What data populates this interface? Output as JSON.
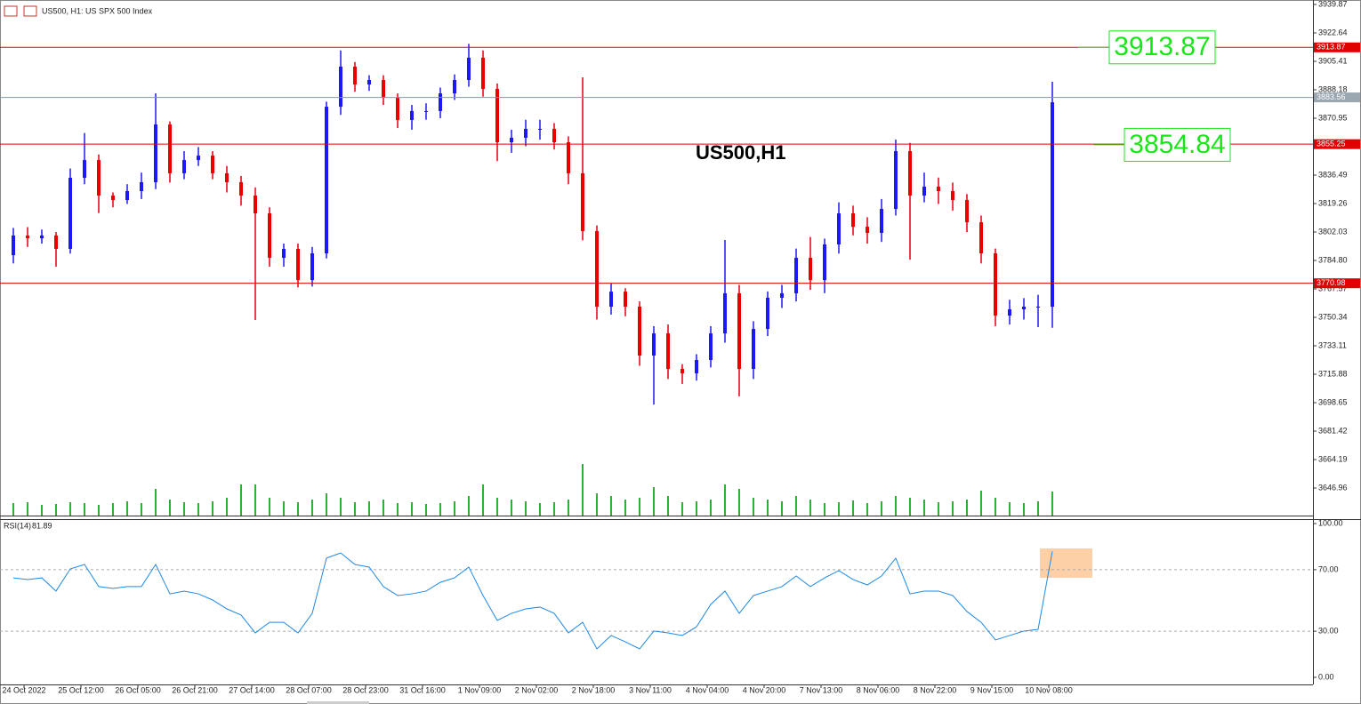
{
  "chart_data": [
    {
      "type": "candlestick",
      "title": "US500, H1:  US SPX 500 Index",
      "watermark": "US500,H1",
      "categories": [
        "24 Oct 2022",
        "25 Oct 12:00",
        "26 Oct 05:00",
        "26 Oct 21:00",
        "27 Oct 14:00",
        "28 Oct 07:00",
        "28 Oct 23:00",
        "31 Oct 16:00",
        "1 Nov 09:00",
        "2 Nov 02:00",
        "2 Nov 18:00",
        "3 Nov 11:00",
        "4 Nov 04:00",
        "4 Nov 20:00",
        "7 Nov 13:00",
        "8 Nov 06:00",
        "8 Nov 22:00",
        "9 Nov 15:00",
        "10 Nov 08:00"
      ],
      "open": [
        3788.0,
        3799.9,
        3798.2,
        3799.9,
        3791.8,
        3834.9,
        3845.6,
        3824.1,
        3821.4,
        3826.8,
        3832.2,
        3867.2,
        3837.6,
        3845.6,
        3848.3,
        3837.6,
        3832.2,
        3824.1,
        3813.3,
        3786.4,
        3791.8,
        3772.9,
        3789.1,
        3877.9,
        3902.2,
        3891.4,
        3894.1,
        3883.3,
        3869.9,
        3875.3,
        3875.3,
        3886.0,
        3894.1,
        3907.6,
        3888.7,
        3856.4,
        3859.1,
        3864.5,
        3864.5,
        3856.4,
        3837.6,
        3802.6,
        3756.8,
        3765.9,
        3756.8,
        3727.2,
        3740.6,
        3719.1,
        3716.4,
        3724.5,
        3740.6,
        3764.9,
        3719.1,
        3743.3,
        3762.2,
        3764.9,
        3786.4,
        3772.9,
        3794.5,
        3813.3,
        3805.2,
        3801.5,
        3816.0,
        3851.0,
        3824.1,
        3829.5,
        3826.8,
        3821.4,
        3807.9,
        3789.1,
        3751.4,
        3755.2,
        3756.8,
        3756.8
      ],
      "high": [
        3804.5,
        3805.0,
        3803.5,
        3802.0,
        3840.5,
        3862.0,
        3849.0,
        3826.0,
        3831.0,
        3838.0,
        3886.0,
        3869.0,
        3851.0,
        3853.5,
        3851.0,
        3842.0,
        3836.0,
        3829.0,
        3817.0,
        3795.0,
        3795.0,
        3793.0,
        3881.0,
        3912.0,
        3905.0,
        3897.0,
        3897.0,
        3886.0,
        3879.0,
        3880.0,
        3889.5,
        3897.5,
        3916.0,
        3912.0,
        3892.0,
        3864.0,
        3870.0,
        3870.0,
        3868.0,
        3860.0,
        3895.7,
        3806.0,
        3771.0,
        3768.0,
        3760.0,
        3745.0,
        3746.0,
        3722.0,
        3728.0,
        3745.0,
        3797.2,
        3770.0,
        3748.0,
        3766.0,
        3770.0,
        3792.0,
        3799.0,
        3798.0,
        3820.0,
        3818.0,
        3811.0,
        3822.0,
        3858.0,
        3856.0,
        3838.0,
        3835.0,
        3832.0,
        3825.0,
        3812.0,
        3792.0,
        3761.0,
        3762.0,
        3764.0,
        3893.0
      ],
      "low": [
        3783.0,
        3793.0,
        3795.0,
        3781.0,
        3789.0,
        3831.0,
        3813.5,
        3817.0,
        3819.0,
        3822.0,
        3828.0,
        3832.0,
        3834.0,
        3842.0,
        3834.0,
        3826.0,
        3818.0,
        3748.7,
        3781.0,
        3781.0,
        3768.5,
        3769.0,
        3786.0,
        3873.0,
        3887.0,
        3887.5,
        3879.0,
        3865.0,
        3864.0,
        3870.0,
        3871.0,
        3882.0,
        3890.0,
        3884.0,
        3845.0,
        3850.0,
        3854.0,
        3858.0,
        3852.0,
        3831.0,
        3797.0,
        3749.0,
        3752.0,
        3751.0,
        3721.0,
        3697.5,
        3713.0,
        3710.0,
        3712.0,
        3720.0,
        3735.0,
        3702.5,
        3713.0,
        3739.0,
        3756.0,
        3760.0,
        3767.0,
        3765.0,
        3789.0,
        3800.0,
        3795.0,
        3796.0,
        3812.0,
        3785.3,
        3820.0,
        3819.0,
        3815.0,
        3802.0,
        3783.0,
        3745.0,
        3746.0,
        3749.0,
        3744.4,
        3744.0
      ],
      "close": [
        3799.9,
        3798.2,
        3799.9,
        3791.8,
        3834.9,
        3845.6,
        3824.1,
        3821.4,
        3826.8,
        3832.2,
        3867.2,
        3837.6,
        3845.6,
        3848.3,
        3837.6,
        3832.2,
        3824.1,
        3813.3,
        3786.4,
        3791.8,
        3772.9,
        3789.1,
        3877.9,
        3902.2,
        3891.4,
        3894.1,
        3883.3,
        3869.9,
        3875.3,
        3875.3,
        3886.0,
        3894.1,
        3907.6,
        3888.7,
        3856.4,
        3859.1,
        3864.5,
        3864.5,
        3856.4,
        3837.6,
        3802.6,
        3756.8,
        3765.9,
        3756.8,
        3727.2,
        3740.6,
        3719.1,
        3716.4,
        3724.5,
        3740.6,
        3764.9,
        3719.1,
        3743.3,
        3762.2,
        3764.9,
        3786.4,
        3772.9,
        3794.5,
        3813.3,
        3805.2,
        3801.5,
        3816.0,
        3851.0,
        3824.1,
        3829.5,
        3826.8,
        3821.4,
        3807.9,
        3789.1,
        3751.4,
        3755.2,
        3756.8,
        3756.8,
        3880.6
      ],
      "volume": [
        14,
        15,
        12,
        13,
        15,
        14,
        12,
        14,
        16,
        14,
        30,
        18,
        15,
        14,
        16,
        20,
        35,
        35,
        20,
        16,
        15,
        18,
        25,
        20,
        15,
        16,
        18,
        14,
        15,
        13,
        14,
        16,
        22,
        35,
        20,
        18,
        16,
        14,
        15,
        18,
        58,
        25,
        22,
        18,
        20,
        32,
        22,
        15,
        16,
        18,
        35,
        30,
        20,
        18,
        16,
        22,
        18,
        14,
        15,
        17,
        14,
        16,
        22,
        20,
        18,
        15,
        16,
        18,
        28,
        20,
        15,
        14,
        16,
        27
      ],
      "up_color": "#1a1aef",
      "down_color": "#e60000",
      "volume_color": "#2fb12f",
      "ylim": [
        3630.27,
        3942.56
      ],
      "yticks": [
        3939.87,
        3922.64,
        3905.41,
        3888.18,
        3870.95,
        3836.49,
        3819.26,
        3802.03,
        {
          "value": 3784.8,
          "label": "3784.80"
        },
        3767.57,
        3750.34,
        3733.11,
        3715.88,
        3698.65,
        3681.42,
        3664.19,
        3646.96
      ],
      "levels": [
        3913.87,
        3855.25,
        3770.98
      ],
      "level_color": "#e00000",
      "current_price": 3883.56,
      "callouts": [
        3913.87,
        3854.84
      ],
      "callout_color": "#19e619"
    },
    {
      "type": "line",
      "title": "RSI(14)",
      "values": [
        64.7,
        63.6,
        64.7,
        56.1,
        70.5,
        73.4,
        59.0,
        57.8,
        59.0,
        59.0,
        73.4,
        54.3,
        56.1,
        54.3,
        50.3,
        44.5,
        40.5,
        28.9,
        35.8,
        35.8,
        28.9,
        41.6,
        77.5,
        80.9,
        73.4,
        71.7,
        59.0,
        53.2,
        54.3,
        56.1,
        61.8,
        64.7,
        71.7,
        53.2,
        37.0,
        41.6,
        44.5,
        45.7,
        41.6,
        28.9,
        35.8,
        18.5,
        27.2,
        23.1,
        18.5,
        30.1,
        28.9,
        27.2,
        32.9,
        47.4,
        56.1,
        41.6,
        53.2,
        56.1,
        59.0,
        65.9,
        59.0,
        64.7,
        69.4,
        63.6,
        60.1,
        65.9,
        77.5,
        54.3,
        56.1,
        56.1,
        53.2,
        42.8,
        35.8,
        24.3,
        27.2,
        30.1,
        31.2,
        81.89
      ],
      "color": "#1e88e5",
      "ylim": [
        -4.62,
        102.89
      ],
      "yticks": [
        {
          "value": 100,
          "label": "100.00"
        },
        {
          "value": 70,
          "label": "70.00"
        },
        {
          "value": 30,
          "label": "30.00"
        },
        {
          "value": 0,
          "label": "0.00"
        }
      ],
      "levels": [
        70,
        30
      ]
    }
  ]
}
